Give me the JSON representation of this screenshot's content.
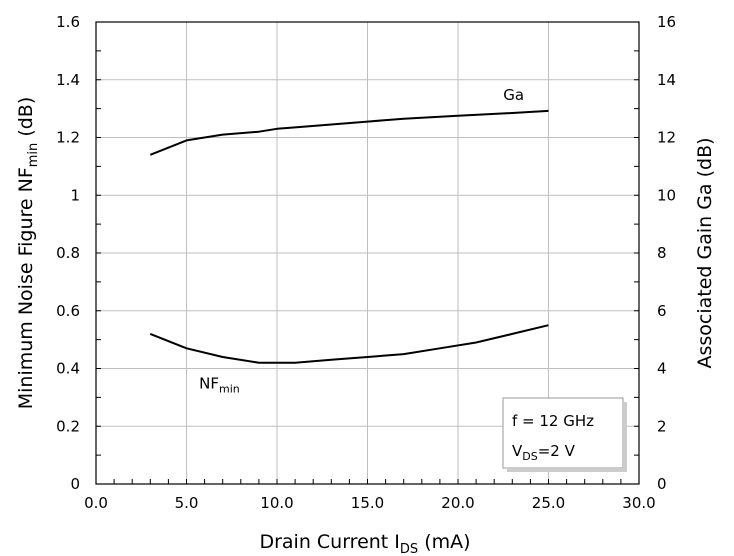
{
  "chart_data": {
    "type": "line",
    "title": "",
    "xlabel": {
      "main": "Drain Current I",
      "sub": "DS",
      "tail": " (mA)"
    },
    "ylabel_left": {
      "main": "Minimum Noise Figure NF",
      "sub": "min",
      "tail": " (dB)"
    },
    "ylabel_right": "Associated Gain Ga (dB)",
    "xlim": [
      0,
      30
    ],
    "ylim_left": [
      0,
      1.6
    ],
    "ylim_right": [
      0,
      16
    ],
    "x_ticks": [
      "0.0",
      "5.0",
      "10.0",
      "15.0",
      "20.0",
      "25.0",
      "30.0"
    ],
    "y_left_ticks": [
      "0",
      "0.2",
      "0.4",
      "0.6",
      "0.8",
      "1",
      "1.2",
      "1.4",
      "1.6"
    ],
    "y_right_ticks": [
      "0",
      "2",
      "4",
      "6",
      "8",
      "10",
      "12",
      "14",
      "16"
    ],
    "grid": true,
    "series": [
      {
        "name": "Ga",
        "axis": "right",
        "x": [
          3,
          5,
          7,
          9,
          10,
          11,
          13,
          15,
          17,
          20,
          23,
          25
        ],
        "y": [
          11.4,
          11.9,
          12.1,
          12.2,
          12.3,
          12.35,
          12.45,
          12.55,
          12.65,
          12.75,
          12.85,
          12.92
        ]
      },
      {
        "name": "NF",
        "name_sub": "min",
        "axis": "left",
        "x": [
          3,
          5,
          7,
          9,
          10,
          11,
          13,
          15,
          17,
          19,
          21,
          23,
          25
        ],
        "y": [
          0.52,
          0.47,
          0.44,
          0.42,
          0.42,
          0.42,
          0.43,
          0.44,
          0.45,
          0.47,
          0.49,
          0.52,
          0.55
        ]
      }
    ],
    "condition_box": {
      "line1": "f = 12 GHz",
      "line2_main": "V",
      "line2_sub": "DS",
      "line2_tail": "=2 V"
    },
    "colors": {
      "line": "#000000",
      "grid": "#bfbfbf",
      "axis": "#000000"
    }
  }
}
